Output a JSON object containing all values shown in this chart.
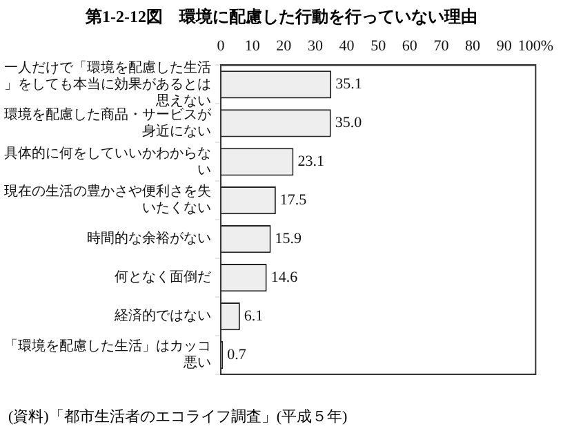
{
  "chart_data": {
    "type": "bar",
    "orientation": "horizontal",
    "title": "第1-2-12図　環境に配慮した行動を行っていない理由",
    "categories": [
      "一人だけで「環境を配慮した生活」をしても本当に効果があるとは思えない",
      "環境を配慮した商品・サービスが身近にない",
      "具体的に何をしていいかわからない",
      "現在の生活の豊かさや便利さを失いたくない",
      "時間的な余裕がない",
      "何となく面倒だ",
      "経済的ではない",
      "「環境を配慮した生活」はカッコ悪い"
    ],
    "values": [
      35.1,
      35.0,
      23.1,
      17.5,
      15.9,
      14.6,
      6.1,
      0.7
    ],
    "value_labels": [
      "35.1",
      "35.0",
      "23.1",
      "17.5",
      "15.9",
      "14.6",
      "6.1",
      "0.7"
    ],
    "color": "#eeeeee",
    "grid": false,
    "legend": false,
    "xlim": [
      0,
      100
    ],
    "xticks": [
      0,
      10,
      20,
      30,
      40,
      50,
      60,
      70,
      80,
      90,
      {
        "value": 100,
        "label": "100%"
      }
    ],
    "annotations": [
      "(資料)「都市生活者のエコライフ調査」(平成５年)"
    ]
  }
}
